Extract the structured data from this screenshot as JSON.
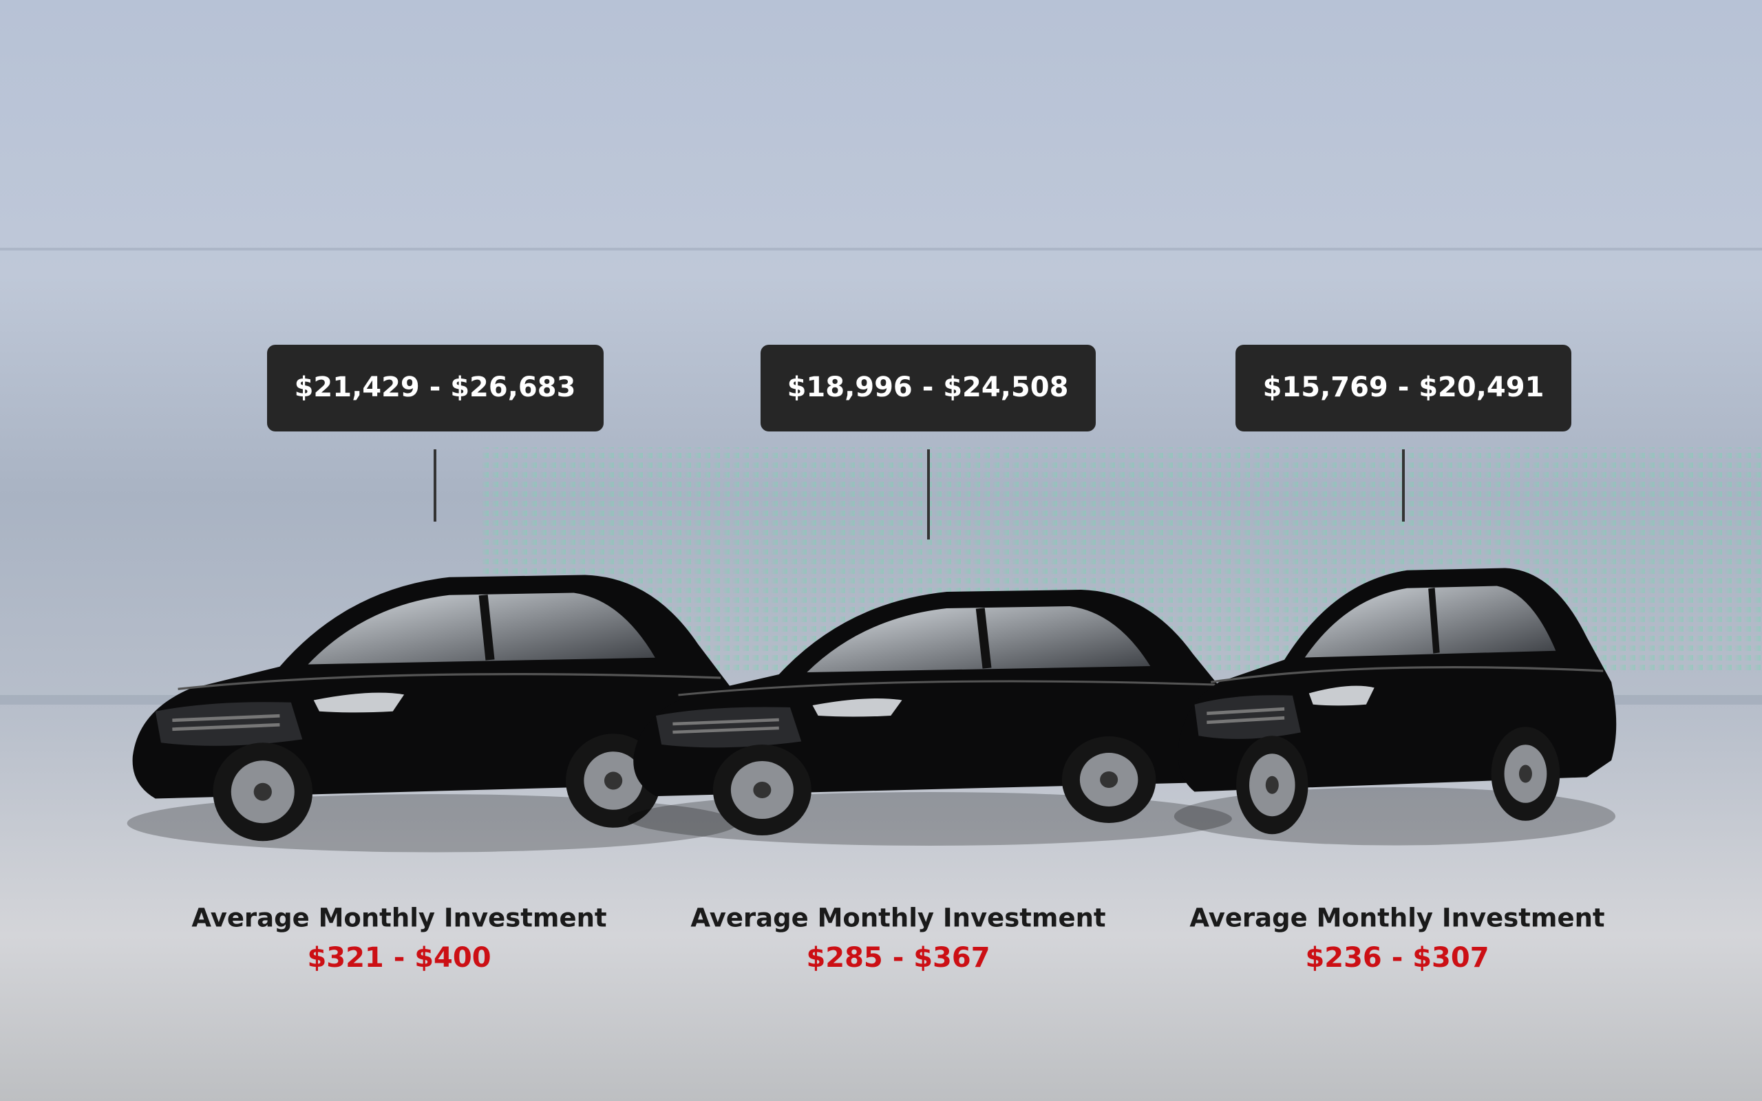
{
  "cars": [
    {
      "price_range": "$21,429 - $26,683",
      "monthly_label": "Average Monthly Investment",
      "monthly_range": "$321 - $400"
    },
    {
      "price_range": "$18,996 - $24,508",
      "monthly_label": "Average Monthly Investment",
      "monthly_range": "$285 - $367"
    },
    {
      "price_range": "$15,769 - $20,491",
      "monthly_label": "Average Monthly Investment",
      "monthly_range": "$236 - $307"
    }
  ]
}
